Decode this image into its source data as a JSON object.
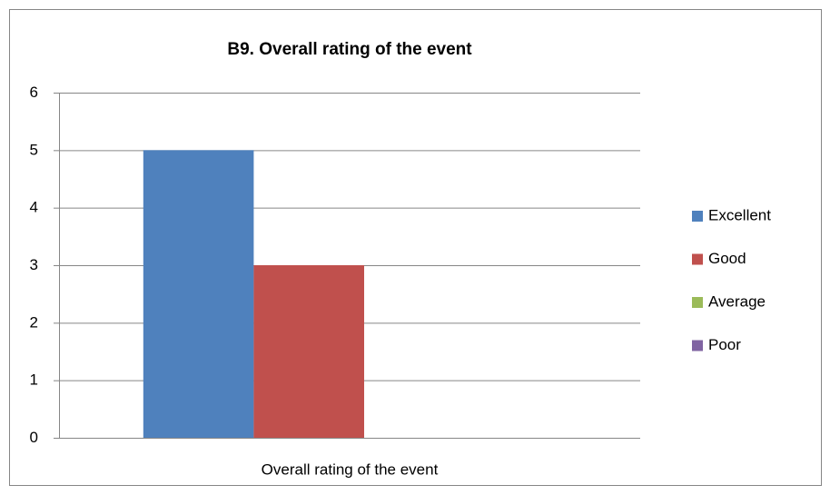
{
  "chart_data": {
    "type": "bar",
    "title": "B9. Overall rating of the event",
    "categories": [
      "Overall rating of the event"
    ],
    "series": [
      {
        "name": "Excellent",
        "color": "#4f81bd",
        "values": [
          5
        ]
      },
      {
        "name": "Good",
        "color": "#c0504d",
        "values": [
          3
        ]
      },
      {
        "name": "Average",
        "color": "#9bbb59",
        "values": [
          0
        ]
      },
      {
        "name": "Poor",
        "color": "#8064a2",
        "values": [
          0
        ]
      }
    ],
    "ylim": [
      0,
      6
    ],
    "yticks": [
      0,
      1,
      2,
      3,
      4,
      5,
      6
    ],
    "grid": true,
    "legend": "right"
  }
}
